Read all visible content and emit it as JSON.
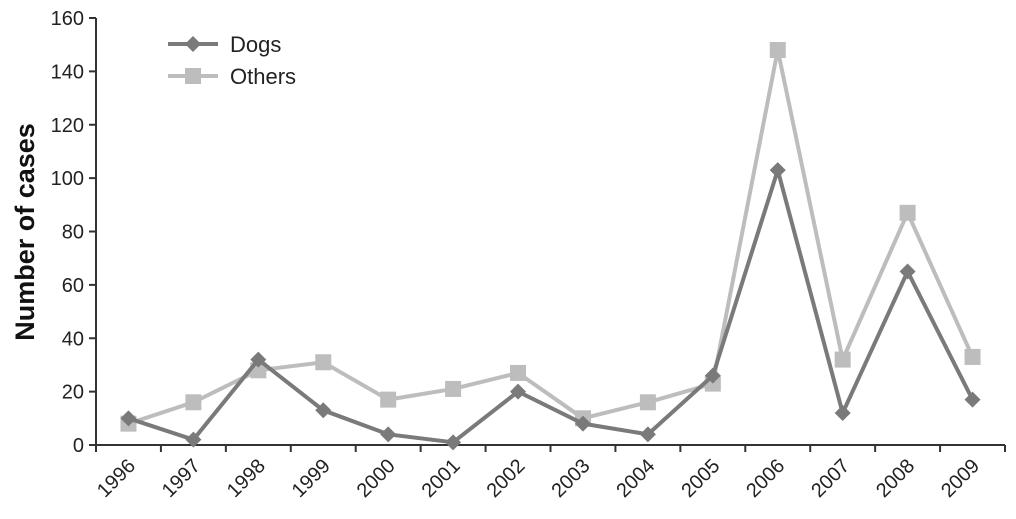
{
  "chart_data": {
    "type": "line",
    "title": "",
    "xlabel": "",
    "ylabel": "Number of cases",
    "x": [
      "1996",
      "1997",
      "1998",
      "1999",
      "2000",
      "2001",
      "2002",
      "2003",
      "2004",
      "2005",
      "2006",
      "2007",
      "2008",
      "2009"
    ],
    "ylim": [
      0,
      160
    ],
    "yticks": [
      0,
      20,
      40,
      60,
      80,
      100,
      120,
      140,
      160
    ],
    "grid": false,
    "legend_position": "top-left",
    "series": [
      {
        "name": "Dogs",
        "marker": "diamond",
        "color": "#7a7a7a",
        "values": [
          10,
          2,
          32,
          13,
          4,
          1,
          20,
          8,
          4,
          26,
          103,
          12,
          65,
          17
        ]
      },
      {
        "name": "Others",
        "marker": "square",
        "color": "#bdbdbd",
        "values": [
          8,
          16,
          28,
          31,
          17,
          21,
          27,
          10,
          16,
          23,
          148,
          32,
          87,
          33
        ]
      }
    ]
  }
}
